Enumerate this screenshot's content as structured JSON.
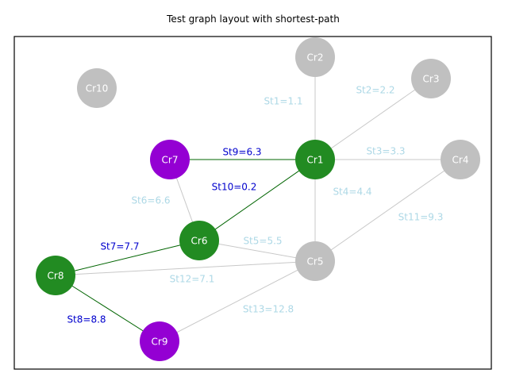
{
  "title": "Test graph layout with shortest-path",
  "colors": {
    "node_default": "#c0c0c0",
    "node_path": "#228b22",
    "node_endpoint": "#9400d3",
    "edge_default": "#c8c8c8",
    "edge_path": "#006400",
    "label_default": "#add8e6",
    "label_path": "#0000cd",
    "frame": "#000000"
  },
  "nodes": [
    {
      "id": "Cr1",
      "label": "Cr1",
      "role": "path"
    },
    {
      "id": "Cr2",
      "label": "Cr2",
      "role": "default"
    },
    {
      "id": "Cr3",
      "label": "Cr3",
      "role": "default"
    },
    {
      "id": "Cr4",
      "label": "Cr4",
      "role": "default"
    },
    {
      "id": "Cr5",
      "label": "Cr5",
      "role": "default"
    },
    {
      "id": "Cr6",
      "label": "Cr6",
      "role": "path"
    },
    {
      "id": "Cr7",
      "label": "Cr7",
      "role": "endpoint"
    },
    {
      "id": "Cr8",
      "label": "Cr8",
      "role": "path"
    },
    {
      "id": "Cr9",
      "label": "Cr9",
      "role": "endpoint"
    },
    {
      "id": "Cr10",
      "label": "Cr10",
      "role": "default"
    }
  ],
  "edges": [
    {
      "id": "St1",
      "from": "Cr1",
      "to": "Cr2",
      "label": "St1=1.1",
      "path": false
    },
    {
      "id": "St2",
      "from": "Cr1",
      "to": "Cr3",
      "label": "St2=2.2",
      "path": false
    },
    {
      "id": "St3",
      "from": "Cr1",
      "to": "Cr4",
      "label": "St3=3.3",
      "path": false
    },
    {
      "id": "St4",
      "from": "Cr1",
      "to": "Cr5",
      "label": "St4=4.4",
      "path": false
    },
    {
      "id": "St5",
      "from": "Cr6",
      "to": "Cr5",
      "label": "St5=5.5",
      "path": false
    },
    {
      "id": "St6",
      "from": "Cr7",
      "to": "Cr6",
      "label": "St6=6.6",
      "path": false
    },
    {
      "id": "St7",
      "from": "Cr8",
      "to": "Cr6",
      "label": "St7=7.7",
      "path": true
    },
    {
      "id": "St8",
      "from": "Cr8",
      "to": "Cr9",
      "label": "St8=8.8",
      "path": true
    },
    {
      "id": "St9",
      "from": "Cr7",
      "to": "Cr1",
      "label": "St9=6.3",
      "path": true
    },
    {
      "id": "St10",
      "from": "Cr6",
      "to": "Cr1",
      "label": "St10=0.2",
      "path": true
    },
    {
      "id": "St11",
      "from": "Cr5",
      "to": "Cr4",
      "label": "St11=9.3",
      "path": false
    },
    {
      "id": "St12",
      "from": "Cr8",
      "to": "Cr5",
      "label": "St12=7.1",
      "path": false
    },
    {
      "id": "St13",
      "from": "Cr9",
      "to": "Cr5",
      "label": "St13=12.8",
      "path": false
    }
  ]
}
